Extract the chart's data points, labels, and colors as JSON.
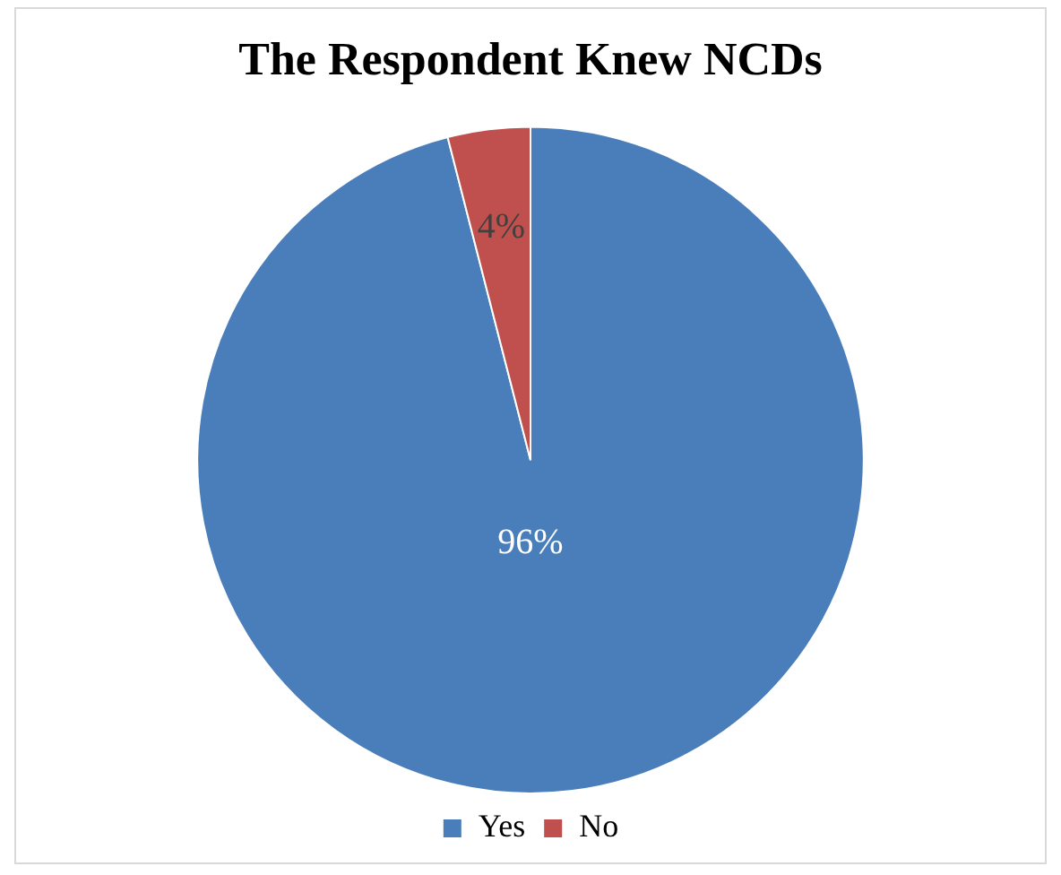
{
  "chart_data": {
    "type": "pie",
    "title": "The Respondent Knew NCDs",
    "categories": [
      "Yes",
      "No"
    ],
    "values": [
      96,
      4
    ],
    "value_labels": [
      "96%",
      "4%"
    ],
    "colors": [
      "#4a7ebb",
      "#c0504d"
    ],
    "legend": "bottom"
  }
}
